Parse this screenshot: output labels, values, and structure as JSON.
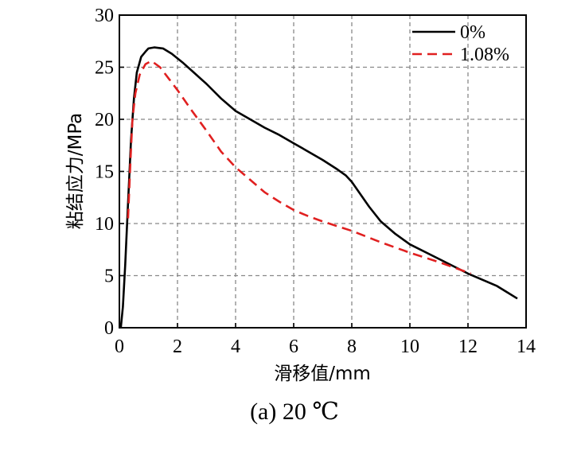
{
  "chart_data": {
    "type": "line",
    "title": "",
    "xlabel": "滑移值/mm",
    "ylabel": "粘结应力/MPa",
    "caption": "(a) 20 ℃",
    "xlim": [
      0,
      14
    ],
    "ylim": [
      0,
      30
    ],
    "xticks": [
      "0",
      "2",
      "4",
      "6",
      "8",
      "10",
      "12",
      "14"
    ],
    "yticks": [
      "0",
      "5",
      "10",
      "15",
      "20",
      "25",
      "30"
    ],
    "grid": true,
    "legend_position": "top-right",
    "series": [
      {
        "name": "0%",
        "color": "#000000",
        "dash": "solid",
        "x": [
          0.05,
          0.12,
          0.2,
          0.3,
          0.4,
          0.5,
          0.6,
          0.75,
          0.9,
          1.0,
          1.2,
          1.5,
          1.8,
          2.2,
          2.6,
          3.0,
          3.5,
          4.0,
          4.5,
          5.0,
          5.5,
          6.0,
          6.5,
          7.0,
          7.5,
          7.8,
          8.0,
          8.3,
          8.6,
          9.0,
          9.5,
          10.0,
          11.0,
          12.0,
          13.0,
          13.7
        ],
        "y": [
          0,
          2.0,
          6.0,
          12.0,
          18.0,
          22.0,
          24.5,
          26.0,
          26.5,
          26.8,
          26.9,
          26.8,
          26.3,
          25.4,
          24.4,
          23.4,
          22.0,
          20.8,
          20.0,
          19.2,
          18.5,
          17.7,
          16.9,
          16.1,
          15.2,
          14.6,
          14.0,
          12.8,
          11.6,
          10.2,
          9.0,
          8.0,
          6.6,
          5.2,
          4.0,
          2.8
        ]
      },
      {
        "name": "1.08%",
        "color": "#e02020",
        "dash": "dashed",
        "x": [
          0.3,
          0.38,
          0.45,
          0.55,
          0.7,
          0.9,
          1.1,
          1.4,
          1.7,
          2.0,
          2.5,
          3.0,
          3.5,
          4.0,
          4.5,
          5.0,
          5.5,
          6.0,
          6.5,
          7.0,
          8.0,
          9.0,
          10.0,
          11.0,
          11.7,
          12.1
        ],
        "y": [
          10.5,
          16.0,
          20.0,
          22.5,
          24.3,
          25.3,
          25.6,
          25.0,
          23.9,
          22.8,
          20.8,
          18.9,
          16.9,
          15.4,
          14.2,
          13.0,
          12.1,
          11.3,
          10.7,
          10.2,
          9.3,
          8.2,
          7.2,
          6.3,
          5.6,
          5.2
        ]
      }
    ]
  }
}
